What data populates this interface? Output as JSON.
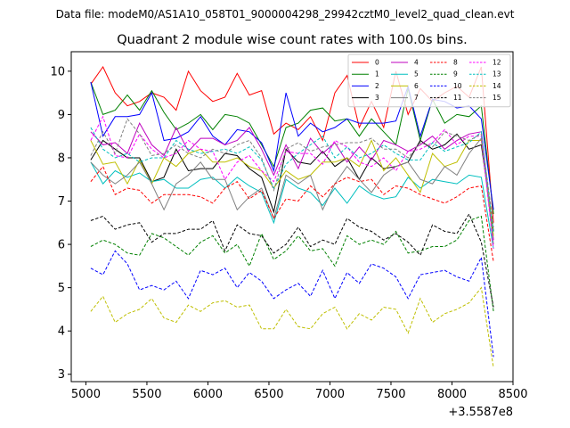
{
  "header": {
    "data_file": "Data file: modeM0/AS1A10_058T01_9000004298_29942cztM0_level2_quad_clean.evt"
  },
  "chart_data": {
    "type": "line",
    "title": "Quadrant 2 module wise count rates with 100.0s bins.",
    "xlabel": "",
    "ylabel": "",
    "x_offset_label": "+3.5587e8",
    "xlim": [
      4880,
      8500
    ],
    "ylim": [
      2.83,
      10.45
    ],
    "x_ticks": [
      5000,
      5500,
      6000,
      6500,
      7000,
      7500,
      8000,
      8500
    ],
    "x_tick_labels": [
      "5000",
      "5500",
      "6000",
      "6500",
      "7000",
      "7500",
      "8000",
      "8500"
    ],
    "y_ticks": [
      3,
      4,
      5,
      6,
      7,
      8,
      9,
      10
    ],
    "y_tick_labels": [
      "3",
      "4",
      "5",
      "6",
      "7",
      "8",
      "9",
      "10"
    ],
    "x": [
      5040,
      5140,
      5240,
      5340,
      5440,
      5540,
      5640,
      5740,
      5840,
      5940,
      6040,
      6140,
      6240,
      6340,
      6440,
      6540,
      6640,
      6740,
      6840,
      6940,
      7040,
      7140,
      7240,
      7340,
      7440,
      7540,
      7640,
      7740,
      7840,
      7940,
      8040,
      8140,
      8240,
      8340
    ],
    "legend": {
      "position": "top-right",
      "columns": 4
    },
    "series": [
      {
        "name": "0",
        "color": "#ff0000",
        "dash": "solid",
        "values": [
          9.7,
          10.1,
          9.5,
          9.2,
          9.3,
          9.5,
          9.4,
          9.1,
          10.0,
          9.55,
          9.3,
          9.4,
          9.95,
          9.45,
          9.55,
          8.55,
          8.8,
          8.65,
          8.95,
          8.4,
          9.5,
          9.9,
          8.7,
          9.3,
          8.7,
          10.0,
          9.0,
          9.6,
          9.3,
          9.5,
          9.65,
          9.4,
          10.1,
          6.5
        ]
      },
      {
        "name": "1",
        "color": "#008000",
        "dash": "solid",
        "values": [
          9.75,
          9.0,
          9.1,
          9.45,
          9.1,
          9.55,
          9.05,
          8.65,
          8.8,
          9.0,
          8.65,
          9.0,
          8.95,
          8.8,
          8.3,
          7.8,
          8.7,
          8.8,
          9.1,
          9.15,
          8.85,
          8.9,
          8.5,
          8.9,
          8.6,
          8.3,
          9.6,
          8.4,
          9.35,
          8.8,
          9.0,
          8.95,
          9.2,
          6.7
        ]
      },
      {
        "name": "2",
        "color": "#0000ff",
        "dash": "solid",
        "values": [
          9.75,
          8.5,
          8.95,
          8.95,
          9.0,
          9.5,
          8.4,
          8.45,
          8.6,
          8.95,
          8.5,
          8.3,
          8.65,
          8.6,
          8.35,
          7.7,
          9.5,
          8.5,
          8.8,
          8.6,
          8.7,
          8.9,
          8.8,
          8.8,
          8.8,
          8.85,
          9.65,
          8.5,
          9.35,
          9.3,
          9.15,
          9.2,
          8.9,
          6.8
        ]
      },
      {
        "name": "3",
        "color": "#000000",
        "dash": "solid",
        "values": [
          7.95,
          8.4,
          8.2,
          8.0,
          8.0,
          7.45,
          7.55,
          8.2,
          7.7,
          7.75,
          7.75,
          8.1,
          8.05,
          7.75,
          7.55,
          6.75,
          8.2,
          7.9,
          7.85,
          8.15,
          7.8,
          8.0,
          7.5,
          8.0,
          7.75,
          7.8,
          7.9,
          8.4,
          8.2,
          8.3,
          8.55,
          8.2,
          8.3,
          6.3
        ]
      },
      {
        "name": "4",
        "color": "#bf00bf",
        "dash": "solid",
        "values": [
          8.6,
          8.3,
          8.35,
          8.1,
          8.8,
          8.3,
          8.05,
          8.7,
          8.15,
          8.45,
          8.45,
          8.3,
          8.4,
          8.7,
          8.2,
          7.6,
          8.3,
          7.75,
          8.45,
          8.1,
          8.35,
          7.9,
          8.25,
          7.95,
          8.4,
          8.3,
          8.15,
          8.3,
          8.5,
          8.2,
          8.4,
          8.55,
          8.6,
          6.1
        ]
      },
      {
        "name": "5",
        "color": "#00bfbf",
        "dash": "solid",
        "values": [
          7.9,
          7.4,
          7.7,
          7.55,
          7.65,
          7.45,
          7.5,
          7.3,
          7.3,
          7.5,
          7.55,
          7.3,
          7.55,
          7.35,
          7.2,
          6.5,
          7.5,
          7.3,
          7.2,
          6.9,
          7.3,
          6.95,
          7.35,
          7.15,
          7.05,
          7.1,
          7.55,
          7.3,
          7.5,
          7.45,
          7.4,
          7.6,
          7.55,
          5.9
        ]
      },
      {
        "name": "6",
        "color": "#bfbf00",
        "dash": "solid",
        "values": [
          8.4,
          7.85,
          7.9,
          7.4,
          7.95,
          7.4,
          8.0,
          7.8,
          8.1,
          8.2,
          7.9,
          7.9,
          8.0,
          7.8,
          7.7,
          7.3,
          7.7,
          7.5,
          7.6,
          7.9,
          7.9,
          8.0,
          7.8,
          8.4,
          7.7,
          8.0,
          7.6,
          7.2,
          8.1,
          7.8,
          7.9,
          8.4,
          8.4,
          6.2
        ]
      },
      {
        "name": "7",
        "color": "#808080",
        "dash": "solid",
        "values": [
          7.9,
          7.6,
          7.4,
          7.6,
          7.9,
          7.4,
          6.8,
          7.4,
          7.6,
          7.9,
          7.5,
          7.5,
          6.8,
          7.1,
          7.3,
          6.6,
          7.6,
          7.4,
          7.6,
          6.8,
          7.4,
          7.8,
          7.5,
          7.2,
          7.6,
          7.8,
          7.9,
          7.5,
          7.4,
          7.8,
          7.6,
          8.1,
          8.45,
          6.0
        ]
      },
      {
        "name": "8",
        "color": "#ff0000",
        "dash": "dashed",
        "values": [
          7.45,
          7.8,
          7.15,
          7.3,
          7.25,
          6.95,
          7.15,
          7.15,
          7.15,
          7.1,
          6.95,
          7.3,
          7.45,
          7.05,
          7.25,
          6.6,
          7.05,
          7.0,
          7.35,
          7.1,
          7.4,
          7.55,
          7.45,
          7.5,
          7.15,
          7.35,
          7.3,
          7.15,
          7.05,
          6.95,
          7.1,
          7.3,
          7.35,
          5.6
        ]
      },
      {
        "name": "9",
        "color": "#008000",
        "dash": "dashed",
        "values": [
          5.95,
          6.1,
          6.0,
          5.8,
          5.75,
          6.25,
          6.15,
          5.95,
          5.75,
          6.05,
          6.2,
          5.8,
          6.0,
          5.5,
          6.25,
          5.65,
          5.85,
          6.2,
          5.85,
          5.9,
          5.5,
          6.2,
          6.0,
          6.1,
          6.0,
          6.3,
          5.8,
          5.85,
          5.95,
          5.95,
          6.1,
          6.55,
          6.65,
          4.45
        ]
      },
      {
        "name": "10",
        "color": "#0000ff",
        "dash": "dashed",
        "values": [
          5.45,
          5.3,
          5.85,
          5.55,
          4.95,
          5.05,
          4.95,
          5.15,
          4.75,
          5.4,
          5.3,
          5.45,
          5.0,
          5.35,
          5.15,
          4.75,
          4.95,
          5.1,
          4.8,
          5.4,
          4.75,
          5.35,
          5.1,
          5.55,
          5.45,
          5.25,
          4.75,
          5.3,
          5.35,
          5.4,
          5.25,
          5.15,
          5.7,
          3.4
        ]
      },
      {
        "name": "11",
        "color": "#000000",
        "dash": "dashed",
        "values": [
          6.55,
          6.65,
          6.35,
          6.45,
          6.5,
          6.05,
          6.25,
          6.25,
          6.35,
          6.35,
          6.55,
          5.85,
          6.45,
          6.25,
          6.2,
          5.8,
          6.0,
          6.4,
          5.95,
          6.1,
          6.0,
          6.6,
          6.4,
          6.3,
          6.1,
          6.25,
          6.05,
          5.75,
          6.45,
          6.3,
          6.25,
          6.7,
          6.05,
          4.55
        ]
      },
      {
        "name": "12",
        "color": "#ff00ff",
        "dash": "dashed",
        "values": [
          8.4,
          8.95,
          8.05,
          8.0,
          8.55,
          8.2,
          8.0,
          8.1,
          8.4,
          8.2,
          8.15,
          7.5,
          7.9,
          8.05,
          7.7,
          7.45,
          8.15,
          8.1,
          8.1,
          7.85,
          8.4,
          8.25,
          7.9,
          7.8,
          8.0,
          7.7,
          8.15,
          8.2,
          8.35,
          8.65,
          8.3,
          8.5,
          8.5,
          5.9
        ]
      },
      {
        "name": "13",
        "color": "#00bfbf",
        "dash": "dashed",
        "values": [
          8.7,
          8.2,
          8.0,
          8.1,
          7.9,
          8.0,
          8.0,
          8.4,
          8.2,
          8.1,
          8.15,
          8.2,
          8.1,
          8.25,
          7.95,
          7.3,
          7.85,
          8.1,
          8.3,
          8.5,
          8.0,
          8.25,
          8.0,
          8.1,
          8.3,
          8.1,
          7.95,
          7.95,
          8.35,
          8.15,
          8.25,
          8.35,
          8.6,
          6.25
        ]
      },
      {
        "name": "14",
        "color": "#bfbf00",
        "dash": "dashed",
        "values": [
          4.45,
          4.8,
          4.2,
          4.4,
          4.5,
          4.75,
          4.3,
          4.2,
          4.6,
          4.45,
          4.65,
          4.7,
          4.55,
          4.6,
          4.05,
          4.05,
          4.5,
          4.1,
          4.05,
          4.4,
          4.55,
          4.05,
          4.4,
          4.25,
          4.55,
          4.5,
          3.95,
          4.75,
          4.2,
          4.4,
          4.5,
          4.65,
          5.0,
          3.15
        ]
      },
      {
        "name": "15",
        "color": "#808080",
        "dash": "dashed",
        "values": [
          8.05,
          8.6,
          8.1,
          8.9,
          8.55,
          8.05,
          8.1,
          8.3,
          8.1,
          8.0,
          8.2,
          8.1,
          8.3,
          8.4,
          8.0,
          7.25,
          8.2,
          8.35,
          8.15,
          8.25,
          8.3,
          8.35,
          8.35,
          8.45,
          8.2,
          8.2,
          8.0,
          8.35,
          8.25,
          8.6,
          8.5,
          8.4,
          8.55,
          6.4
        ]
      }
    ]
  }
}
